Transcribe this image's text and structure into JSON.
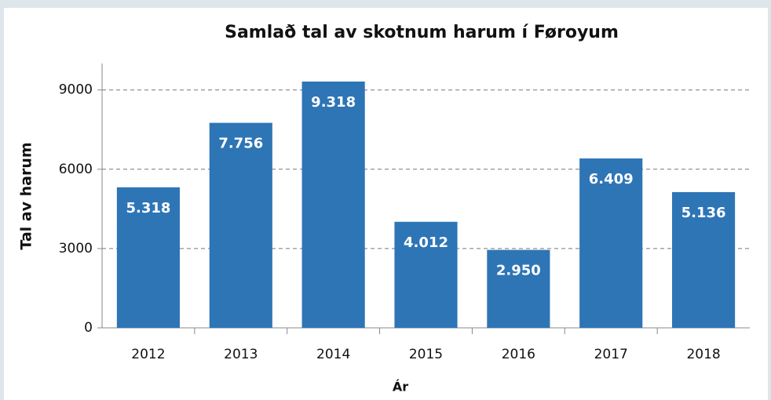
{
  "chart_data": {
    "type": "bar",
    "title": "Samlað tal av skotnum harum í Føroyum",
    "categories": [
      "2012",
      "2013",
      "2014",
      "2015",
      "2016",
      "2017",
      "2018"
    ],
    "values": [
      5318,
      7756,
      9318,
      4012,
      2950,
      6409,
      5136
    ],
    "value_labels": [
      "5.318",
      "7.756",
      "9.318",
      "4.012",
      "2.950",
      "6.409",
      "5.136"
    ],
    "color": "#2e75b6",
    "xlabel": "Ár",
    "ylabel": "Tal av harum",
    "ylim": [
      0,
      10000
    ],
    "yticks": [
      0,
      3000,
      6000,
      9000
    ],
    "grid": true
  }
}
